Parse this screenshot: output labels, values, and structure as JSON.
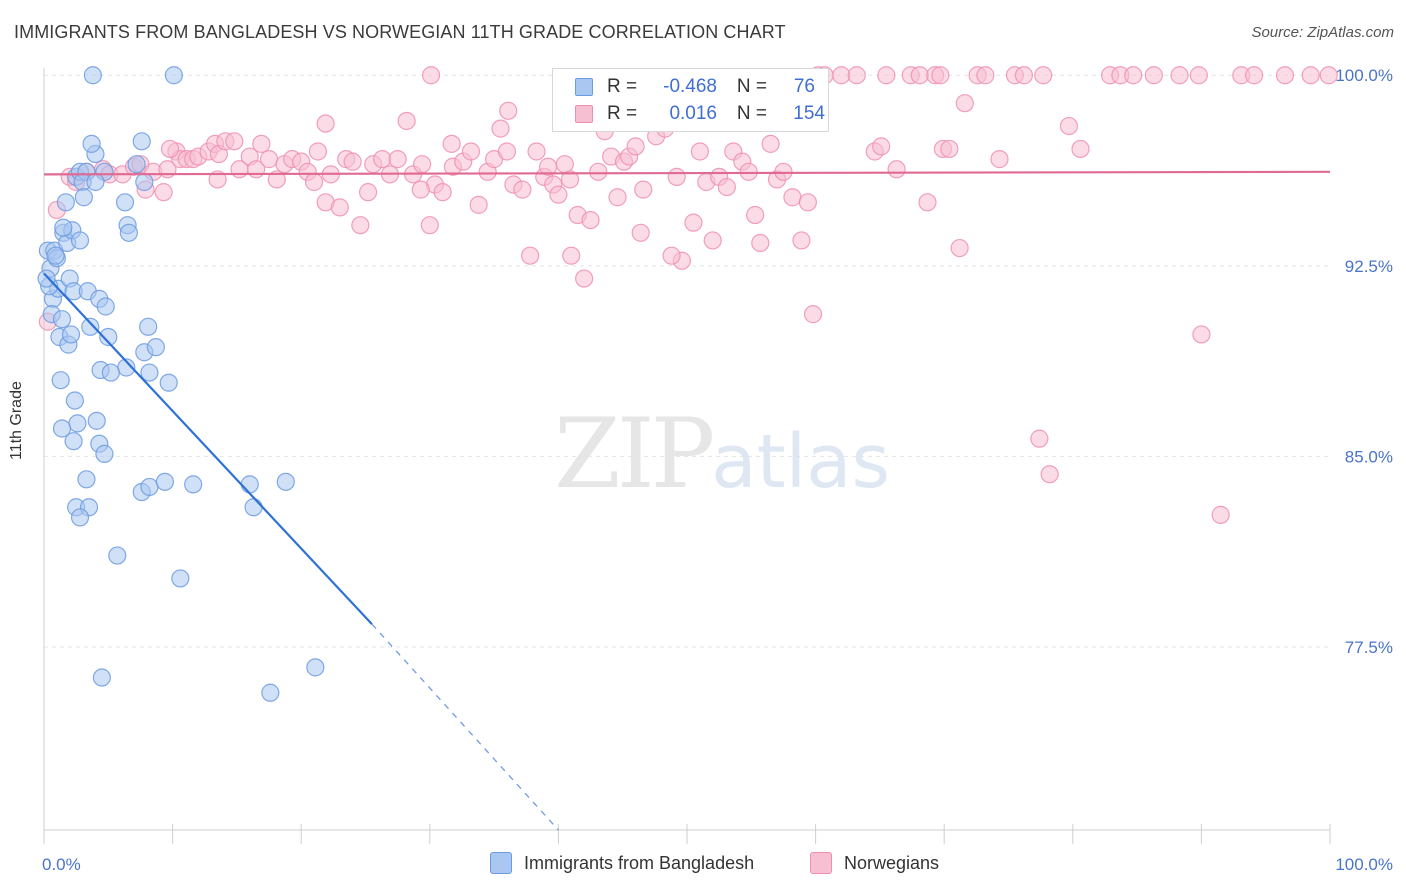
{
  "title": "IMMIGRANTS FROM BANGLADESH VS NORWEGIAN 11TH GRADE CORRELATION CHART",
  "source": "Source: ZipAtlas.com",
  "legend": {
    "row1": {
      "r_label": "R =",
      "r_value": "-0.468",
      "n_label": "N =",
      "n_value": "76"
    },
    "row2": {
      "r_label": "R =",
      "r_value": "0.016",
      "n_label": "N =",
      "n_value": "154"
    }
  },
  "bottom_legend": {
    "s1": "Immigrants from Bangladesh",
    "s2": "Norwegians"
  },
  "watermark": {
    "zip": "ZIP",
    "atlas": "atlas"
  },
  "colors": {
    "blue_fill": "#a9c7f0",
    "blue_stroke": "#6b9be0",
    "blue_line": "#2f72d6",
    "pink_fill": "#f7c0d2",
    "pink_stroke": "#ee8fb0",
    "pink_line": "#e06a93",
    "tick": "#4a74c9"
  },
  "chart_data": {
    "type": "scatter",
    "title": "IMMIGRANTS FROM BANGLADESH VS NORWEGIAN 11TH GRADE CORRELATION CHART",
    "xlabel": "",
    "ylabel": "11th Grade",
    "x_tick_labels": [
      "0.0%",
      "100.0%"
    ],
    "y_tick_labels": [
      "100.0%",
      "92.5%",
      "85.0%",
      "77.5%"
    ],
    "y_ticks": [
      100.0,
      92.5,
      85.0,
      77.5
    ],
    "xlim": [
      0,
      100
    ],
    "ylim": [
      70.3,
      100.6
    ],
    "grid": "horizontal dashed",
    "legend_position": "top-center",
    "series": [
      {
        "name": "Immigrants from Bangladesh",
        "r": -0.468,
        "n": 76,
        "trend": {
          "x0": 0,
          "y0": 92.2,
          "x1": 25.5,
          "y1": 78.4,
          "dashed_to": {
            "x": 40.0,
            "y": 70.3
          }
        },
        "points": [
          [
            3.8,
            100
          ],
          [
            10.1,
            100
          ],
          [
            0.7,
            91.2
          ],
          [
            0.3,
            93.1
          ],
          [
            0.5,
            92.4
          ],
          [
            0.8,
            93.1
          ],
          [
            1.0,
            92.8
          ],
          [
            1.1,
            91.6
          ],
          [
            1.5,
            93.8
          ],
          [
            1.8,
            93.4
          ],
          [
            2.2,
            93.9
          ],
          [
            2.8,
            93.5
          ],
          [
            0.4,
            91.7
          ],
          [
            0.6,
            90.6
          ],
          [
            1.2,
            89.7
          ],
          [
            1.9,
            89.4
          ],
          [
            2.0,
            92.0
          ],
          [
            2.3,
            91.5
          ],
          [
            3.4,
            91.5
          ],
          [
            4.3,
            91.2
          ],
          [
            5.0,
            89.7
          ],
          [
            6.4,
            88.5
          ],
          [
            3.6,
            90.1
          ],
          [
            2.5,
            96.0
          ],
          [
            2.8,
            96.2
          ],
          [
            4.0,
            96.9
          ],
          [
            4.7,
            96.2
          ],
          [
            3.7,
            97.3
          ],
          [
            7.6,
            97.4
          ],
          [
            7.8,
            95.8
          ],
          [
            3.3,
            96.2
          ],
          [
            3.0,
            95.8
          ],
          [
            1.7,
            95.0
          ],
          [
            6.3,
            95.0
          ],
          [
            6.5,
            94.1
          ],
          [
            6.6,
            93.8
          ],
          [
            8.1,
            90.1
          ],
          [
            7.8,
            89.1
          ],
          [
            8.2,
            88.3
          ],
          [
            9.7,
            87.9
          ],
          [
            4.4,
            88.4
          ],
          [
            5.2,
            88.3
          ],
          [
            1.3,
            88.0
          ],
          [
            2.4,
            87.2
          ],
          [
            4.1,
            86.4
          ],
          [
            2.6,
            86.3
          ],
          [
            1.4,
            86.1
          ],
          [
            4.3,
            85.5
          ],
          [
            2.3,
            85.6
          ],
          [
            4.7,
            85.1
          ],
          [
            3.3,
            84.1
          ],
          [
            7.6,
            83.6
          ],
          [
            8.2,
            83.8
          ],
          [
            9.4,
            84.0
          ],
          [
            11.6,
            83.9
          ],
          [
            16.0,
            83.9
          ],
          [
            16.3,
            83.0
          ],
          [
            18.8,
            84.0
          ],
          [
            2.5,
            83.0
          ],
          [
            3.5,
            83.0
          ],
          [
            2.8,
            82.6
          ],
          [
            5.7,
            81.1
          ],
          [
            10.6,
            80.2
          ],
          [
            4.5,
            76.3
          ],
          [
            17.6,
            75.7
          ],
          [
            21.1,
            76.7
          ],
          [
            7.2,
            96.5
          ],
          [
            4.0,
            95.8
          ],
          [
            3.1,
            95.2
          ],
          [
            1.5,
            94.0
          ],
          [
            0.9,
            92.9
          ],
          [
            0.2,
            92.0
          ],
          [
            1.4,
            90.4
          ],
          [
            2.1,
            89.8
          ],
          [
            4.8,
            90.9
          ],
          [
            8.7,
            89.3
          ]
        ]
      },
      {
        "name": "Norwegians",
        "r": 0.016,
        "n": 154,
        "trend": {
          "x0": 0,
          "y0": 96.1,
          "x1": 100,
          "y1": 96.2
        },
        "points": [
          [
            0.3,
            90.3
          ],
          [
            1.0,
            94.7
          ],
          [
            2.0,
            96.0
          ],
          [
            2.5,
            95.8
          ],
          [
            3.3,
            96.2
          ],
          [
            4.6,
            96.3
          ],
          [
            5.1,
            96.1
          ],
          [
            6.1,
            96.1
          ],
          [
            7.0,
            96.4
          ],
          [
            7.5,
            96.5
          ],
          [
            7.9,
            95.5
          ],
          [
            8.5,
            96.2
          ],
          [
            9.3,
            95.4
          ],
          [
            9.6,
            96.3
          ],
          [
            10.3,
            97.0
          ],
          [
            10.6,
            96.7
          ],
          [
            11.1,
            96.7
          ],
          [
            11.6,
            96.7
          ],
          [
            12.0,
            96.8
          ],
          [
            12.8,
            97.0
          ],
          [
            13.3,
            97.3
          ],
          [
            13.6,
            96.9
          ],
          [
            14.1,
            97.4
          ],
          [
            14.8,
            97.4
          ],
          [
            15.2,
            96.3
          ],
          [
            16.0,
            96.8
          ],
          [
            16.5,
            96.3
          ],
          [
            16.9,
            97.3
          ],
          [
            17.5,
            96.7
          ],
          [
            18.1,
            95.9
          ],
          [
            18.7,
            96.5
          ],
          [
            19.3,
            96.7
          ],
          [
            20.0,
            96.6
          ],
          [
            20.5,
            96.2
          ],
          [
            21.0,
            95.8
          ],
          [
            21.3,
            97.0
          ],
          [
            21.9,
            95.0
          ],
          [
            22.3,
            96.1
          ],
          [
            23.0,
            94.8
          ],
          [
            23.5,
            96.7
          ],
          [
            24.0,
            96.6
          ],
          [
            24.6,
            94.1
          ],
          [
            25.2,
            95.4
          ],
          [
            25.6,
            96.5
          ],
          [
            26.3,
            96.7
          ],
          [
            26.9,
            96.1
          ],
          [
            27.5,
            96.7
          ],
          [
            28.2,
            98.2
          ],
          [
            28.7,
            96.1
          ],
          [
            29.4,
            96.5
          ],
          [
            30.0,
            94.1
          ],
          [
            30.4,
            95.7
          ],
          [
            31.0,
            95.4
          ],
          [
            31.8,
            96.4
          ],
          [
            32.6,
            96.6
          ],
          [
            33.2,
            97.0
          ],
          [
            33.8,
            94.9
          ],
          [
            34.5,
            96.2
          ],
          [
            35.0,
            96.7
          ],
          [
            35.5,
            97.9
          ],
          [
            36.0,
            97.0
          ],
          [
            36.5,
            95.7
          ],
          [
            37.2,
            95.5
          ],
          [
            37.8,
            92.9
          ],
          [
            38.3,
            97.0
          ],
          [
            38.9,
            96.0
          ],
          [
            39.6,
            95.7
          ],
          [
            40.0,
            95.3
          ],
          [
            40.5,
            96.5
          ],
          [
            41.0,
            92.9
          ],
          [
            41.5,
            94.5
          ],
          [
            42.0,
            92.0
          ],
          [
            42.5,
            94.3
          ],
          [
            43.1,
            96.2
          ],
          [
            43.6,
            97.8
          ],
          [
            44.1,
            96.8
          ],
          [
            44.6,
            95.2
          ],
          [
            45.1,
            96.6
          ],
          [
            45.5,
            96.8
          ],
          [
            46.0,
            97.2
          ],
          [
            46.6,
            95.5
          ],
          [
            47.1,
            98.3
          ],
          [
            47.6,
            97.6
          ],
          [
            48.3,
            97.9
          ],
          [
            49.2,
            96.0
          ],
          [
            49.6,
            92.7
          ],
          [
            50.5,
            94.2
          ],
          [
            51.0,
            97.0
          ],
          [
            51.5,
            95.8
          ],
          [
            52.0,
            93.5
          ],
          [
            52.5,
            96.0
          ],
          [
            53.1,
            95.6
          ],
          [
            53.6,
            97.0
          ],
          [
            54.3,
            96.6
          ],
          [
            54.8,
            96.2
          ],
          [
            55.3,
            94.5
          ],
          [
            55.7,
            93.4
          ],
          [
            56.5,
            97.3
          ],
          [
            57.0,
            95.9
          ],
          [
            57.5,
            96.2
          ],
          [
            58.2,
            95.2
          ],
          [
            58.9,
            93.5
          ],
          [
            59.4,
            95.0
          ],
          [
            60.2,
            100
          ],
          [
            62.0,
            100
          ],
          [
            63.2,
            100
          ],
          [
            64.6,
            97.0
          ],
          [
            65.1,
            97.2
          ],
          [
            65.5,
            100
          ],
          [
            66.3,
            96.3
          ],
          [
            67.4,
            100
          ],
          [
            68.1,
            100
          ],
          [
            68.7,
            95.0
          ],
          [
            69.3,
            100
          ],
          [
            69.9,
            97.1
          ],
          [
            70.4,
            97.1
          ],
          [
            69.7,
            100
          ],
          [
            71.2,
            93.2
          ],
          [
            71.6,
            98.9
          ],
          [
            72.6,
            100
          ],
          [
            73.2,
            100
          ],
          [
            74.3,
            96.7
          ],
          [
            75.5,
            100
          ],
          [
            77.7,
            100
          ],
          [
            78.2,
            84.3
          ],
          [
            77.4,
            85.7
          ],
          [
            79.7,
            98.0
          ],
          [
            80.6,
            97.1
          ],
          [
            82.9,
            100
          ],
          [
            83.7,
            100
          ],
          [
            84.7,
            100
          ],
          [
            86.3,
            100
          ],
          [
            88.3,
            100
          ],
          [
            89.8,
            100
          ],
          [
            90.0,
            89.8
          ],
          [
            91.5,
            82.7
          ],
          [
            93.1,
            100
          ],
          [
            94.1,
            100
          ],
          [
            96.5,
            100
          ],
          [
            98.5,
            100
          ],
          [
            99.9,
            100
          ],
          [
            29.3,
            95.5
          ],
          [
            30.1,
            100
          ],
          [
            36.1,
            98.6
          ],
          [
            39.2,
            96.4
          ],
          [
            40.9,
            95.9
          ],
          [
            46.4,
            93.8
          ],
          [
            48.8,
            92.9
          ],
          [
            56.7,
            98.2
          ],
          [
            59.8,
            90.6
          ],
          [
            13.5,
            95.9
          ],
          [
            9.8,
            97.1
          ],
          [
            21.9,
            98.1
          ],
          [
            31.7,
            97.3
          ],
          [
            60.7,
            100
          ],
          [
            76.2,
            100
          ]
        ]
      }
    ]
  }
}
